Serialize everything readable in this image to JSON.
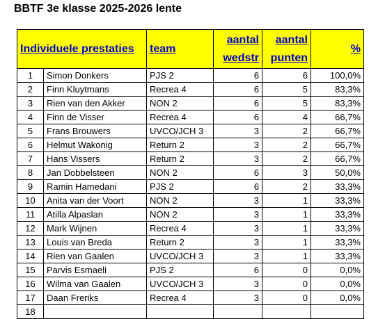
{
  "title": "BBTF 3e klasse 2025-2026 lente",
  "headers": {
    "name": "Individuele prestaties",
    "team": "team",
    "matches_line1": "aantal",
    "matches_line2": "wedstr",
    "points_line1": "aantal",
    "points_line2": "punten",
    "pct": "%"
  },
  "rows": [
    {
      "rank": "1",
      "name": "Simon Donkers",
      "team": "PJS 2",
      "matches": "6",
      "points": "6",
      "pct": "100,0%"
    },
    {
      "rank": "2",
      "name": "Finn Kluytmans",
      "team": "Recrea 4",
      "matches": "6",
      "points": "5",
      "pct": "83,3%"
    },
    {
      "rank": "3",
      "name": "Rien van den Akker",
      "team": "NON 2",
      "matches": "6",
      "points": "5",
      "pct": "83,3%"
    },
    {
      "rank": "4",
      "name": "Finn de Visser",
      "team": "Recrea 4",
      "matches": "6",
      "points": "4",
      "pct": "66,7%"
    },
    {
      "rank": "5",
      "name": "Frans Brouwers",
      "team": "UVCO/JCH 3",
      "matches": "3",
      "points": "2",
      "pct": "66,7%"
    },
    {
      "rank": "6",
      "name": "Helmut Wakonig",
      "team": "Return 2",
      "matches": "3",
      "points": "2",
      "pct": "66,7%"
    },
    {
      "rank": "7",
      "name": "Hans Vissers",
      "team": "Return 2",
      "matches": "3",
      "points": "2",
      "pct": "66,7%"
    },
    {
      "rank": "8",
      "name": "Jan Dobbelsteen",
      "team": "NON 2",
      "matches": "6",
      "points": "3",
      "pct": "50,0%"
    },
    {
      "rank": "9",
      "name": "Ramin Hamedani",
      "team": "PJS 2",
      "matches": "6",
      "points": "2",
      "pct": "33,3%"
    },
    {
      "rank": "10",
      "name": "Anita van der Voort",
      "team": "NON 2",
      "matches": "3",
      "points": "1",
      "pct": "33,3%"
    },
    {
      "rank": "11",
      "name": "Atilla Alpaslan",
      "team": "NON 2",
      "matches": "3",
      "points": "1",
      "pct": "33,3%"
    },
    {
      "rank": "12",
      "name": "Mark Wijnen",
      "team": "Recrea 4",
      "matches": "3",
      "points": "1",
      "pct": "33,3%"
    },
    {
      "rank": "13",
      "name": "Louis van Breda",
      "team": "Return 2",
      "matches": "3",
      "points": "1",
      "pct": "33,3%"
    },
    {
      "rank": "14",
      "name": "Rien van Gaalen",
      "team": "UVCO/JCH 3",
      "matches": "3",
      "points": "1",
      "pct": "33,3%"
    },
    {
      "rank": "15",
      "name": "Parvis Esmaeli",
      "team": "PJS 2",
      "matches": "6",
      "points": "0",
      "pct": "0,0%"
    },
    {
      "rank": "16",
      "name": "Wilma van Gaalen",
      "team": "UVCO/JCH 3",
      "matches": "3",
      "points": "0",
      "pct": "0,0%"
    },
    {
      "rank": "17",
      "name": "Daan Freriks",
      "team": "Recrea 4",
      "matches": "3",
      "points": "0",
      "pct": "0,0%"
    },
    {
      "rank": "18",
      "name": "",
      "team": "",
      "matches": "",
      "points": "",
      "pct": ""
    }
  ],
  "colors": {
    "header_bg": "#ffff00",
    "header_text": "#0000cc"
  }
}
